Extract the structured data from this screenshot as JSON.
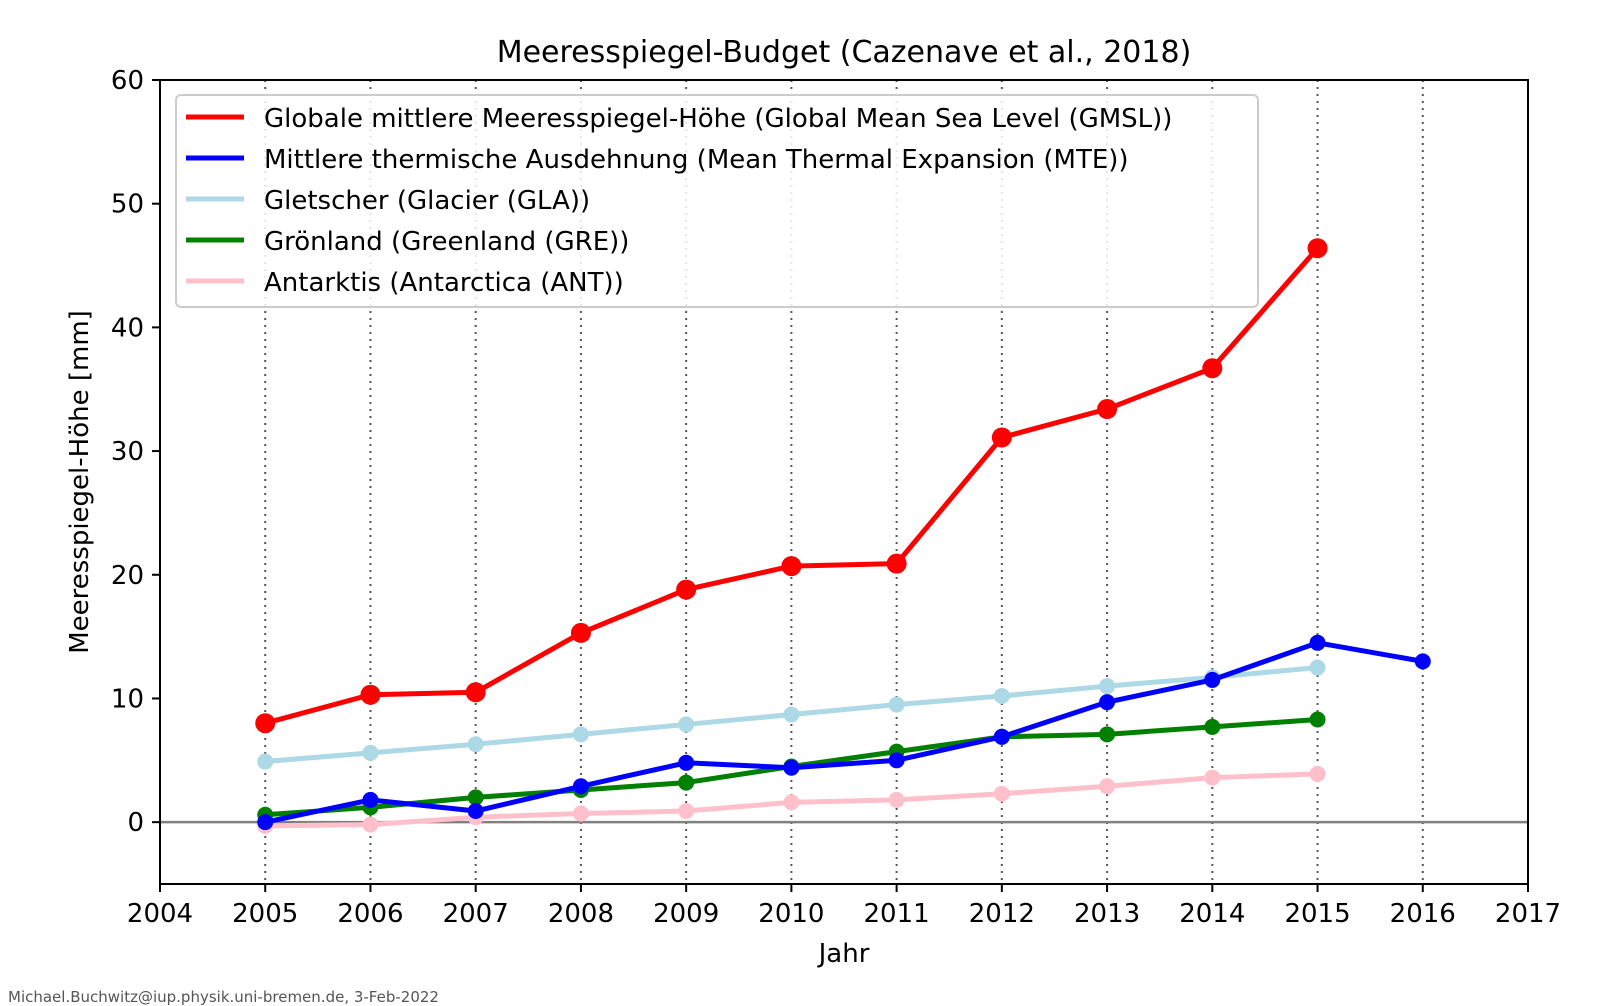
{
  "chart_data": {
    "type": "line",
    "title": "Meeresspiegel-Budget (Cazenave et al., 2018)",
    "xlabel": "Jahr",
    "ylabel": "Meeresspiegel-Höhe [mm]",
    "xlim": [
      2004,
      2017
    ],
    "ylim": [
      -5,
      60
    ],
    "xticks": [
      2004,
      2005,
      2006,
      2007,
      2008,
      2009,
      2010,
      2011,
      2012,
      2013,
      2014,
      2015,
      2016,
      2017
    ],
    "yticks": [
      0,
      10,
      20,
      30,
      40,
      50,
      60
    ],
    "vertical_gridlines": [
      2005,
      2006,
      2007,
      2008,
      2009,
      2010,
      2011,
      2012,
      2013,
      2014,
      2015,
      2016
    ],
    "zero_line": true,
    "legend_position": "top-left",
    "series": [
      {
        "name": "Globale mittlere Meeresspiegel-Höhe  (Global Mean Sea Level (GMSL))",
        "color": "#ff0000",
        "x": [
          2005,
          2006,
          2007,
          2008,
          2009,
          2010,
          2011,
          2012,
          2013,
          2014,
          2015
        ],
        "y": [
          8.0,
          10.3,
          10.5,
          15.3,
          18.8,
          20.7,
          20.9,
          31.1,
          33.4,
          36.7,
          46.4
        ]
      },
      {
        "name": "Mittlere thermische Ausdehnung (Mean Thermal Expansion (MTE))",
        "color": "#0000ff",
        "x": [
          2005,
          2006,
          2007,
          2008,
          2009,
          2010,
          2011,
          2012,
          2013,
          2014,
          2015,
          2016
        ],
        "y": [
          0.0,
          1.8,
          0.9,
          2.9,
          4.8,
          4.4,
          5.0,
          6.9,
          9.7,
          11.5,
          14.5,
          13.0
        ]
      },
      {
        "name": "Gletscher (Glacier (GLA))",
        "color": "#add8e6",
        "x": [
          2005,
          2006,
          2007,
          2008,
          2009,
          2010,
          2011,
          2012,
          2013,
          2014,
          2015
        ],
        "y": [
          4.9,
          5.6,
          6.3,
          7.1,
          7.9,
          8.7,
          9.5,
          10.2,
          11.0,
          11.7,
          12.5
        ]
      },
      {
        "name": "Grönland (Greenland (GRE))",
        "color": "#008000",
        "x": [
          2005,
          2006,
          2007,
          2008,
          2009,
          2010,
          2011,
          2012,
          2013,
          2014,
          2015
        ],
        "y": [
          0.6,
          1.2,
          2.0,
          2.6,
          3.2,
          4.5,
          5.7,
          6.9,
          7.1,
          7.7,
          8.3
        ]
      },
      {
        "name": "Antarktis (Antarctica (ANT))",
        "color": "#ffc0cb",
        "x": [
          2005,
          2006,
          2007,
          2008,
          2009,
          2010,
          2011,
          2012,
          2013,
          2014,
          2015
        ],
        "y": [
          -0.3,
          -0.2,
          0.4,
          0.7,
          0.9,
          1.6,
          1.8,
          2.3,
          2.9,
          3.6,
          3.9
        ]
      }
    ]
  },
  "credit": "Michael.Buchwitz@iup.physik.uni-bremen.de, 3-Feb-2022"
}
